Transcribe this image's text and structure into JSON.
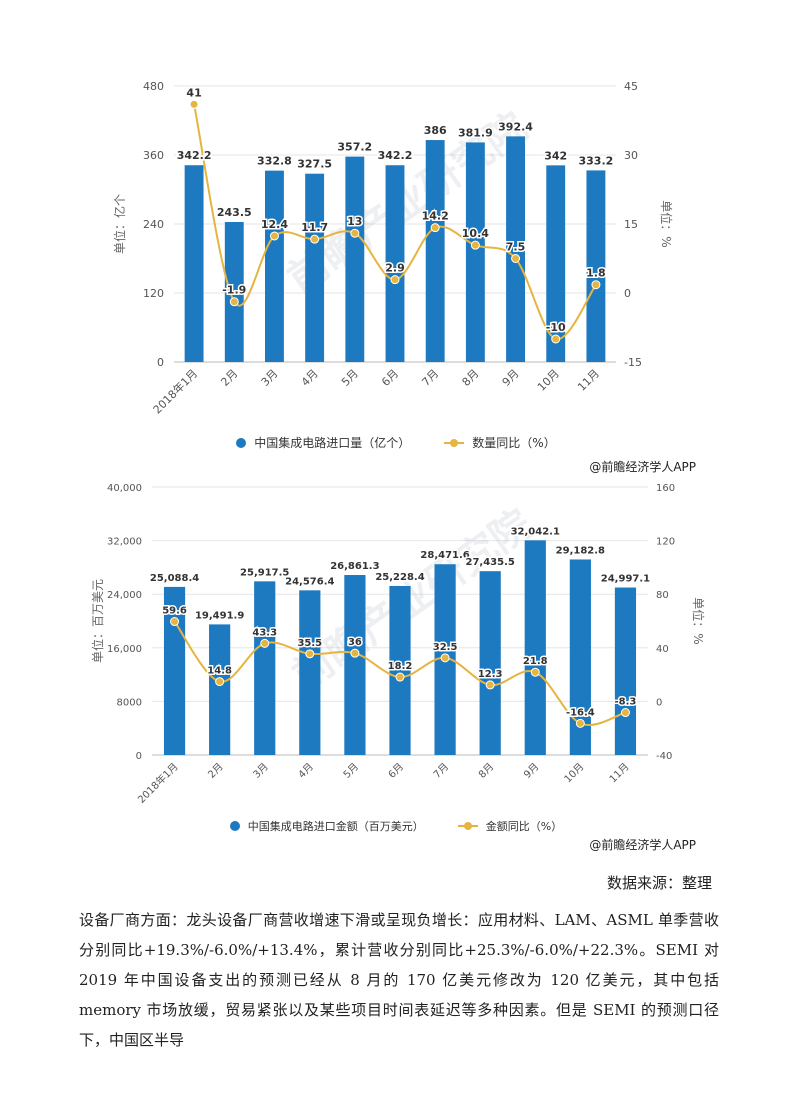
{
  "charts": [
    {
      "legend": {
        "bar": "中国集成电路进口量（亿个）",
        "line": "数量同比（%）"
      },
      "credit": "@前瞻经济学人APP",
      "watermark": "前瞻产业研究院",
      "colors": {
        "bar": "#1d79c0",
        "line": "#e6b441"
      }
    },
    {
      "legend": {
        "bar": "中国集成电路进口金额（百万美元）",
        "line": "金额同比（%）"
      },
      "credit": "@前瞻经济学人APP",
      "watermark": "前瞻产业研究院",
      "colors": {
        "bar": "#1d79c0",
        "line": "#e6b441"
      }
    }
  ],
  "chart_data": [
    {
      "type": "bar",
      "categories": [
        "2018年1月",
        "2月",
        "3月",
        "4月",
        "5月",
        "6月",
        "7月",
        "8月",
        "9月",
        "10月",
        "11月"
      ],
      "series": [
        {
          "name": "中国集成电路进口量（亿个）",
          "type": "bar",
          "axis": "left",
          "values": [
            342.2,
            243.5,
            332.8,
            327.5,
            357.2,
            342.2,
            386,
            381.9,
            392.4,
            342,
            333.2
          ],
          "labels": [
            "342.2",
            "243.5",
            "332.8",
            "327.5",
            "357.2",
            "342.2",
            "386",
            "381.9",
            "392.4",
            "342",
            "333.2"
          ]
        },
        {
          "name": "数量同比（%）",
          "type": "line",
          "axis": "right",
          "values": [
            41,
            -1.9,
            12.4,
            11.7,
            13,
            2.9,
            14.2,
            10.4,
            7.5,
            -10,
            1.8
          ],
          "labels": [
            "41",
            "-1.9",
            "12.4",
            "11.7",
            "13",
            "2.9",
            "14.2",
            "10.4",
            "7.5",
            "-10",
            "1.8"
          ]
        }
      ],
      "ylabel_left": "单位：亿个",
      "ylabel_right": "单位：%",
      "ylim_left": [
        0,
        480
      ],
      "yticks_left": [
        "0",
        "120",
        "240",
        "360",
        "480"
      ],
      "ylim_right": [
        -15,
        45
      ],
      "yticks_right": [
        "-15",
        "0",
        "15",
        "30",
        "45"
      ],
      "grid": true,
      "legend_position": "bottom"
    },
    {
      "type": "bar",
      "categories": [
        "2018年1月",
        "2月",
        "3月",
        "4月",
        "5月",
        "6月",
        "7月",
        "8月",
        "9月",
        "10月",
        "11月"
      ],
      "series": [
        {
          "name": "中国集成电路进口金额（百万美元）",
          "type": "bar",
          "axis": "left",
          "values": [
            25088.4,
            19491.9,
            25917.5,
            24576.4,
            26861.3,
            25228.4,
            28471.6,
            27435.5,
            32042.1,
            29182.8,
            24997.1
          ],
          "labels": [
            "25,088.4",
            "19,491.9",
            "25,917.5",
            "24,576.4",
            "26,861.3",
            "25,228.4",
            "28,471.6",
            "27,435.5",
            "32,042.1",
            "29,182.8",
            "24,997.1"
          ]
        },
        {
          "name": "金额同比（%）",
          "type": "line",
          "axis": "right",
          "values": [
            59.6,
            14.8,
            43.3,
            35.5,
            36,
            18.2,
            32.5,
            12.3,
            21.8,
            -16.4,
            -8.3
          ],
          "labels": [
            "59.6",
            "14.8",
            "43.3",
            "35.5",
            "36",
            "18.2",
            "32.5",
            "12.3",
            "21.8",
            "-16.4",
            "-8.3"
          ]
        }
      ],
      "ylabel_left": "单位：百万美元",
      "ylabel_right": "单位：%",
      "ylim_left": [
        0,
        40000
      ],
      "yticks_left": [
        "0",
        "8000",
        "16,000",
        "24,000",
        "32,000",
        "40,000"
      ],
      "ylim_right": [
        -40,
        160
      ],
      "yticks_right": [
        "-40",
        "0",
        "40",
        "80",
        "120",
        "160"
      ],
      "grid": true,
      "legend_position": "bottom"
    }
  ],
  "source": "数据来源：整理",
  "paragraph": "设备厂商方面：龙头设备厂商营收增速下滑或呈现负增长：应用材料、LAM、ASML 单季营收分别同比+19.3%/-6.0%/+13.4%，累计营收分别同比+25.3%/-6.0%/+22.3%。SEMI 对 2019 年中国设备支出的预测已经从 8 月的 170 亿美元修改为 120 亿美元，其中包括 memory 市场放缓，贸易紧张以及某些项目时间表延迟等多种因素。但是 SEMI 的预测口径下，中国区半导"
}
